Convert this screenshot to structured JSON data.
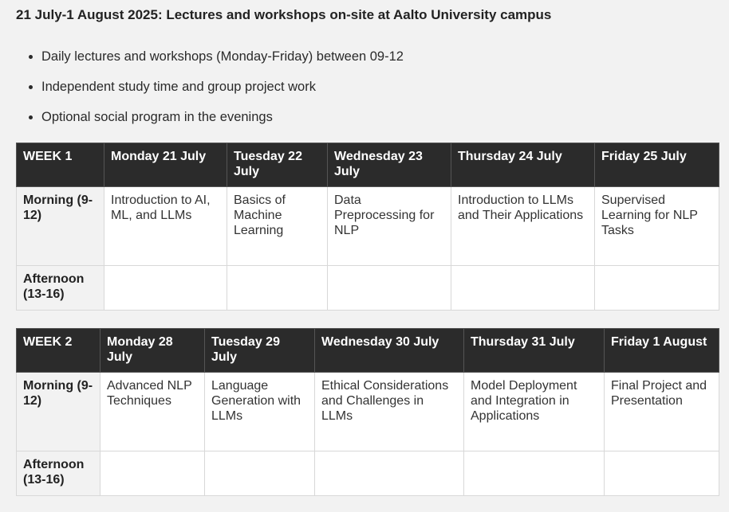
{
  "title": "21 July-1 August 2025:  Lectures and workshops on-site at Aalto University campus",
  "bullets": [
    "Daily lectures and workshops (Monday-Friday) between 09-12",
    "Independent study time and group project work",
    "Optional social program in the evenings"
  ],
  "weeks": [
    {
      "header": [
        "WEEK 1",
        "Monday 21 July",
        "Tuesday 22 July",
        "Wednesday 23 July",
        "Thursday 24 July",
        "Friday 25 July"
      ],
      "morning": [
        "Morning (9-12)",
        "Introduction to AI, ML, and LLMs",
        "Basics of Machine Learning",
        "Data Preprocessing for NLP",
        "Introduction to LLMs and Their Applications",
        "Supervised Learning for NLP Tasks"
      ],
      "afternoon": [
        "Afternoon (13-16)",
        "",
        "",
        "",
        "",
        ""
      ]
    },
    {
      "header": [
        "WEEK 2",
        "Monday 28 July",
        "Tuesday 29 July",
        "Wednesday 30 July",
        "Thursday 31 July",
        "Friday 1 August"
      ],
      "morning": [
        "Morning (9-12)",
        "Advanced NLP Techniques",
        "Language Generation with LLMs",
        "Ethical Considerations and Challenges in LLMs",
        "Model Deployment and Integration in Applications",
        "Final Project and Presentation"
      ],
      "afternoon": [
        "Afternoon (13-16)",
        "",
        "",
        "",
        "",
        ""
      ]
    }
  ]
}
